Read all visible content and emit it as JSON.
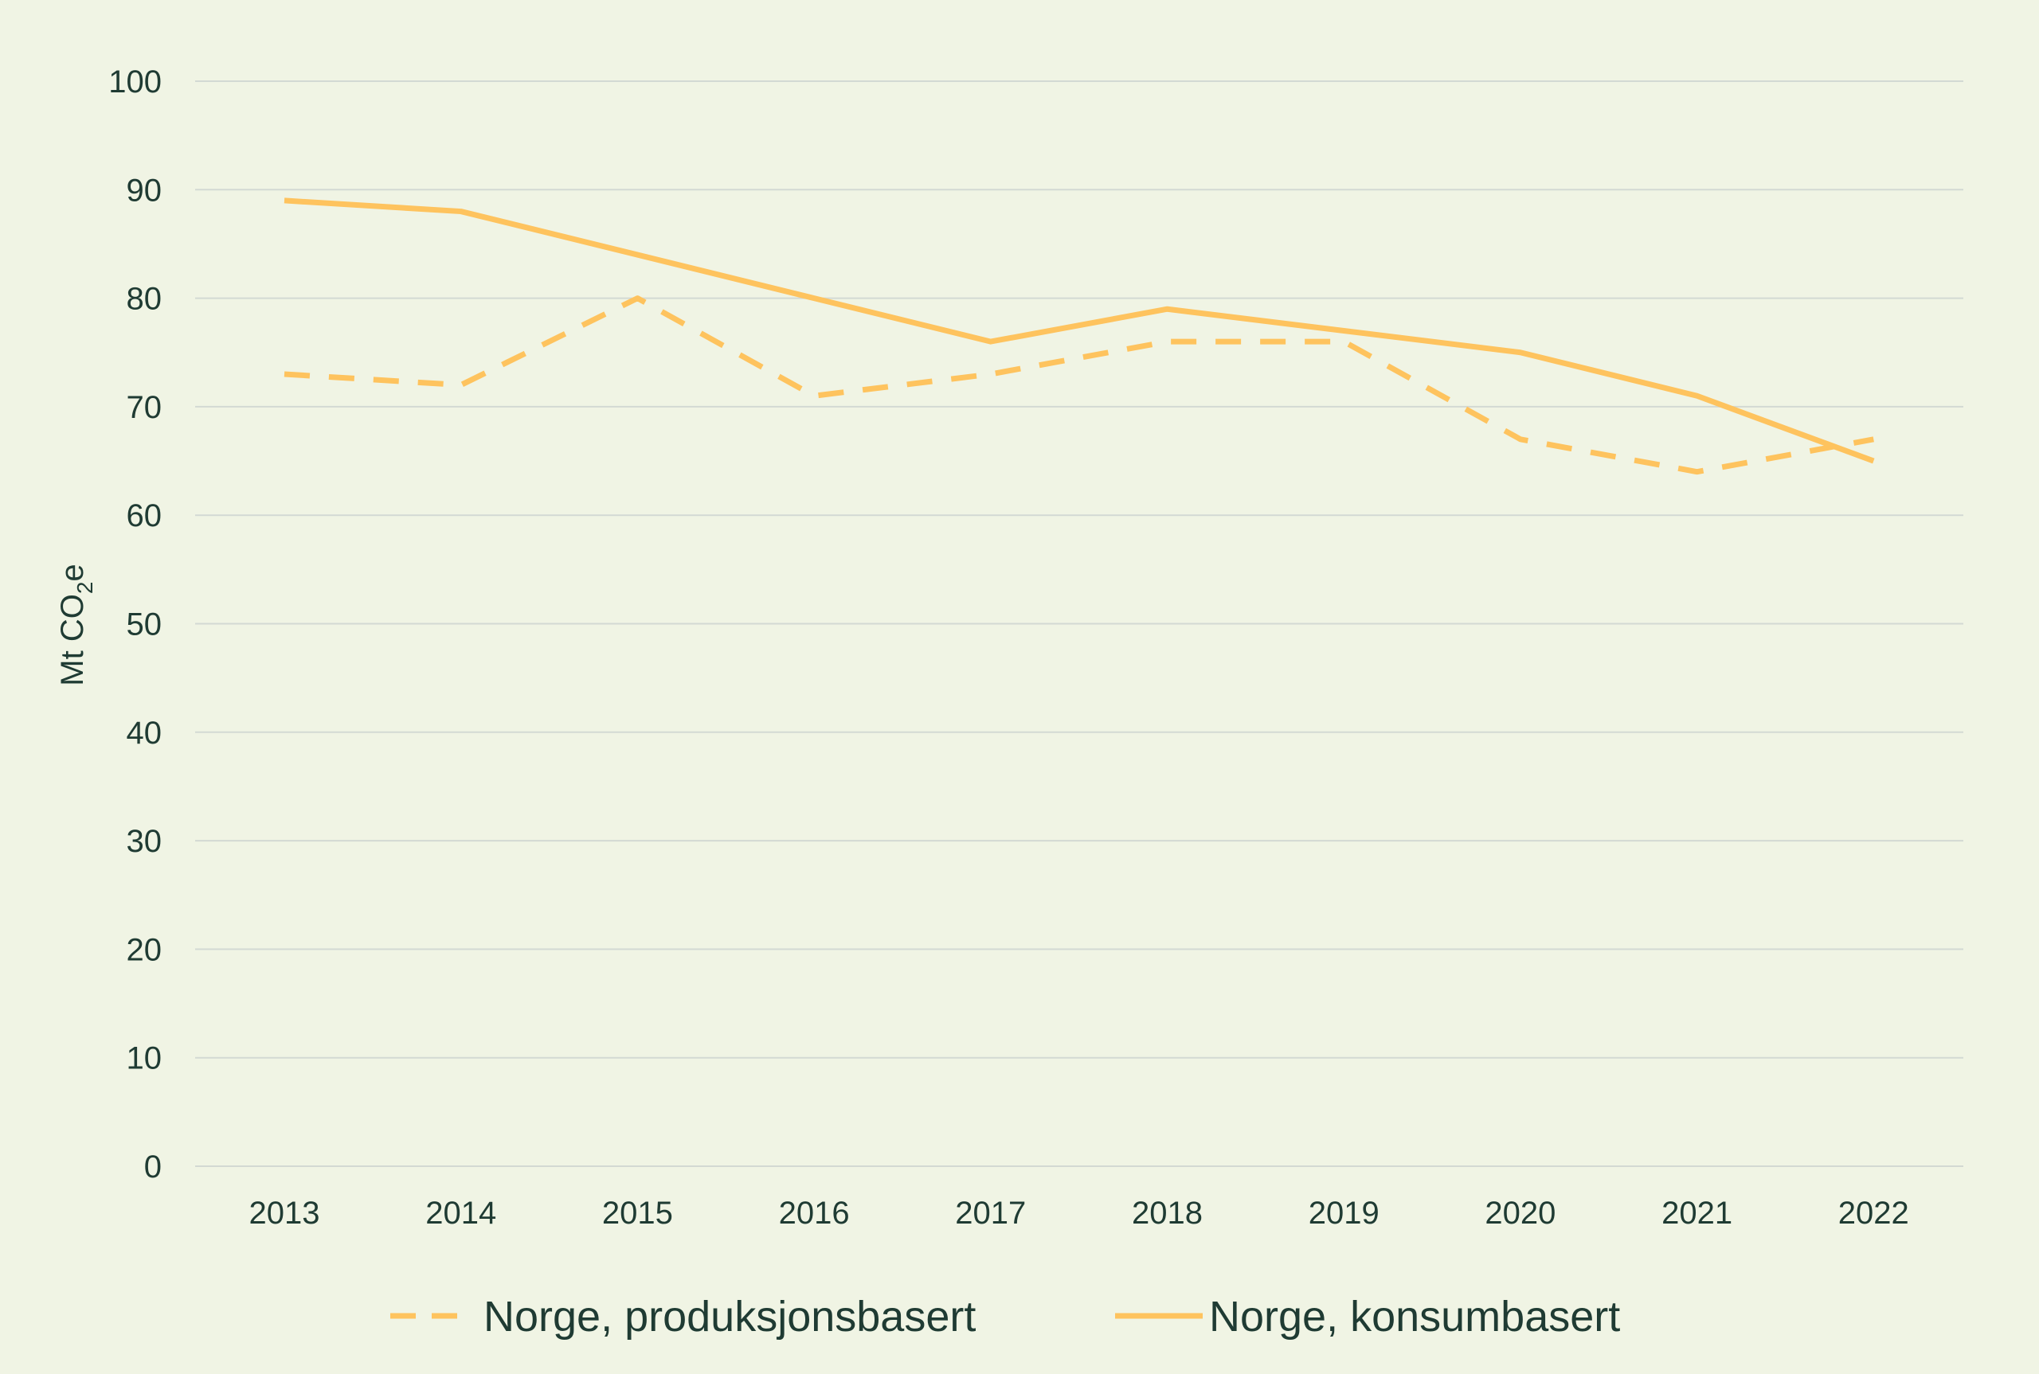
{
  "chart_data": {
    "type": "line",
    "title": "",
    "x": [
      "2013",
      "2014",
      "2015",
      "2016",
      "2017",
      "2018",
      "2019",
      "2020",
      "2021",
      "2022"
    ],
    "series": [
      {
        "name": "Norge, produksjonsbasert",
        "style": "dashed",
        "color": "#fec35e",
        "values": [
          73,
          72,
          80,
          71,
          73,
          76,
          76,
          67,
          64,
          67
        ]
      },
      {
        "name": "Norge, konsumbasert",
        "style": "solid",
        "color": "#fec35e",
        "values": [
          89,
          88,
          84,
          80,
          76,
          79,
          77,
          75,
          71,
          65
        ]
      }
    ],
    "ylabel": {
      "prefix": "Mt CO",
      "subscript": "2",
      "suffix": "e"
    },
    "ylim": [
      0,
      100
    ],
    "yticks": [
      "0",
      "10",
      "20",
      "30",
      "40",
      "50",
      "60",
      "70",
      "80",
      "90",
      "100"
    ],
    "grid": true,
    "legend_position": "bottom"
  }
}
